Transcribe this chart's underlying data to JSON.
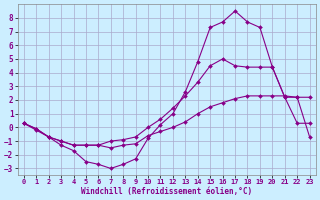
{
  "xlabel": "Windchill (Refroidissement éolien,°C)",
  "background_color": "#cceeff",
  "grid_color": "#aaaacc",
  "line_color": "#880088",
  "xlim": [
    -0.5,
    23.5
  ],
  "ylim": [
    -3.5,
    9.0
  ],
  "xticks": [
    0,
    1,
    2,
    3,
    4,
    5,
    6,
    7,
    8,
    9,
    10,
    11,
    12,
    13,
    14,
    15,
    16,
    17,
    18,
    19,
    20,
    21,
    22,
    23
  ],
  "yticks": [
    -3,
    -2,
    -1,
    0,
    1,
    2,
    3,
    4,
    5,
    6,
    7,
    8
  ],
  "series1_x": [
    0,
    1,
    2,
    3,
    4,
    5,
    6,
    7,
    8,
    9,
    10,
    11,
    12,
    13,
    14,
    15,
    16,
    17,
    18,
    19,
    20,
    21,
    22,
    23
  ],
  "series1_y": [
    0.3,
    -0.1,
    -0.7,
    -1.3,
    -1.7,
    -2.5,
    -2.7,
    -3.0,
    -2.7,
    -2.3,
    -0.8,
    0.2,
    1.0,
    2.6,
    4.8,
    7.3,
    7.7,
    8.5,
    7.7,
    7.3,
    4.4,
    2.2,
    0.3,
    0.3
  ],
  "series2_x": [
    0,
    1,
    2,
    3,
    4,
    5,
    6,
    7,
    8,
    9,
    10,
    11,
    12,
    13,
    14,
    15,
    16,
    17,
    18,
    19,
    20,
    21,
    22,
    23
  ],
  "series2_y": [
    0.3,
    -0.1,
    -0.7,
    -1.0,
    -1.3,
    -1.3,
    -1.3,
    -1.0,
    -0.9,
    -0.7,
    0.0,
    0.6,
    1.4,
    2.3,
    3.3,
    4.5,
    5.0,
    4.5,
    4.4,
    4.4,
    4.4,
    2.2,
    2.2,
    2.2
  ],
  "series3_x": [
    0,
    1,
    2,
    3,
    4,
    5,
    6,
    7,
    8,
    9,
    10,
    11,
    12,
    13,
    14,
    15,
    16,
    17,
    18,
    19,
    20,
    21,
    22,
    23
  ],
  "series3_y": [
    0.3,
    -0.2,
    -0.7,
    -1.0,
    -1.3,
    -1.3,
    -1.3,
    -1.5,
    -1.3,
    -1.2,
    -0.6,
    -0.3,
    0.0,
    0.4,
    1.0,
    1.5,
    1.8,
    2.1,
    2.3,
    2.3,
    2.3,
    2.3,
    2.2,
    -0.7
  ]
}
